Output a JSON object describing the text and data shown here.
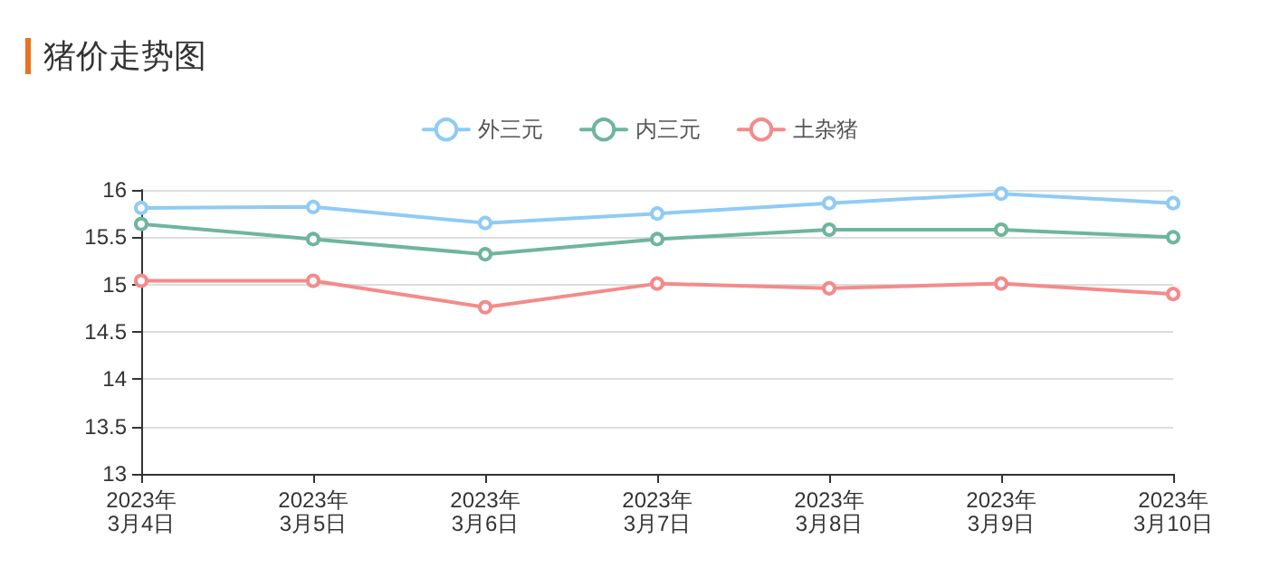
{
  "chart_data": {
    "type": "line",
    "title": "猪价走势图",
    "categories": [
      "2023年\n3月4日",
      "2023年\n3月5日",
      "2023年\n3月6日",
      "2023年\n3月7日",
      "2023年\n3月8日",
      "2023年\n3月9日",
      "2023年\n3月10日"
    ],
    "series": [
      {
        "name": "外三元",
        "color": "#8fcbf5",
        "values": [
          15.81,
          15.82,
          15.65,
          15.75,
          15.86,
          15.96,
          15.86
        ]
      },
      {
        "name": "内三元",
        "color": "#6fb59c",
        "values": [
          15.64,
          15.48,
          15.32,
          15.48,
          15.58,
          15.58,
          15.5
        ]
      },
      {
        "name": "土杂猪",
        "color": "#f58a8a",
        "values": [
          15.04,
          15.04,
          14.76,
          15.01,
          14.96,
          15.01,
          14.9
        ]
      }
    ],
    "ylim": [
      13,
      16
    ],
    "yticks": [
      13,
      13.5,
      14,
      14.5,
      15,
      15.5,
      16
    ],
    "grid": "y",
    "legend": "top",
    "marker": "circle",
    "line_style": "solid"
  }
}
